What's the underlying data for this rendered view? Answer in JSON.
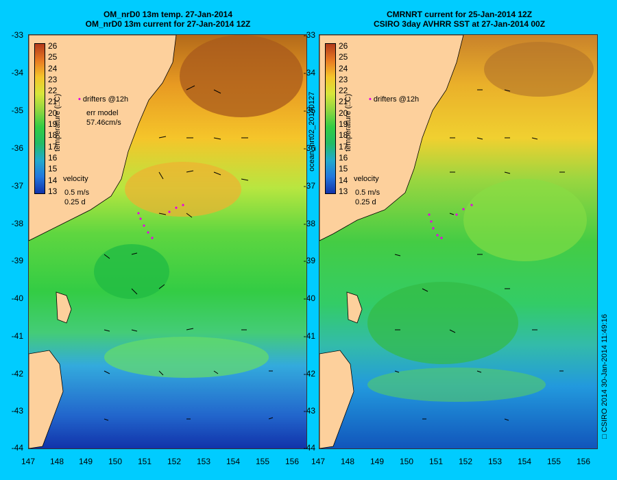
{
  "left_panel": {
    "title_line1": "OM_nrD0 13m temp. 27-Jan-2014",
    "title_line2": "OM_nrD0 13m current for 27-Jan-2014 12Z",
    "drifters_label": "drifters @12h",
    "err_model_label": "err model",
    "err_model_value": "57.46cm/s",
    "velocity_label": "velocity",
    "velocity_scale": "0.5 m/s",
    "velocity_time": "0.25 d"
  },
  "right_panel": {
    "title_line1": "CMRNRT current for 25-Jan-2014 12Z",
    "title_line2": "CSIRO 3day AVHRR SST at 27-Jan-2014 00Z",
    "drifters_label": "drifters @12h",
    "velocity_label": "velocity",
    "velocity_scale": "0.5 m/s",
    "velocity_time": "0.25 d",
    "side_label": "ocean_nrt02_20140127"
  },
  "colorbar_title": "temperature (□C)",
  "colorbar_ticks": [
    "26",
    "25",
    "24",
    "23",
    "22",
    "21",
    "20",
    "19",
    "18",
    "17",
    "16",
    "15",
    "14",
    "13"
  ],
  "lat_ticks": [
    "-33",
    "-34",
    "-35",
    "-36",
    "-37",
    "-38",
    "-39",
    "-40",
    "-41",
    "-42",
    "-43",
    "-44"
  ],
  "lon_ticks": [
    "147",
    "148",
    "149",
    "150",
    "151",
    "152",
    "153",
    "154",
    "155",
    "156"
  ],
  "credit": "□ CSIRO 2014   30-Jan-2014 11:49:16",
  "colors": {
    "background": "#00ccff",
    "land": "#fdd09c",
    "drifter": "#e600e6"
  }
}
